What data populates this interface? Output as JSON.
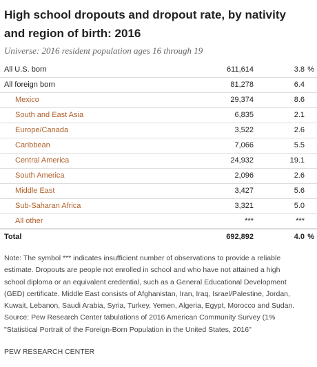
{
  "header": {
    "title": "High school dropouts and dropout rate, by nativity and region of birth: 2016",
    "subtitle": "Universe: 2016 resident population ages 16 through 19"
  },
  "table": {
    "rows": [
      {
        "label": "All U.S. born",
        "count": "611,614",
        "rate": "3.8",
        "unit": "%"
      },
      {
        "label": "All foreign born",
        "count": "81,278",
        "rate": "6.4"
      },
      {
        "label": "Mexico",
        "count": "29,374",
        "rate": "8.6",
        "sub": true
      },
      {
        "label": "South and East Asia",
        "count": "6,835",
        "rate": "2.1",
        "sub": true
      },
      {
        "label": "Europe/Canada",
        "count": "3,522",
        "rate": "2.6",
        "sub": true
      },
      {
        "label": "Caribbean",
        "count": "7,066",
        "rate": "5.5",
        "sub": true
      },
      {
        "label": "Central America",
        "count": "24,932",
        "rate": "19.1",
        "sub": true
      },
      {
        "label": "South America",
        "count": "2,096",
        "rate": "2.6",
        "sub": true
      },
      {
        "label": "Middle East",
        "count": "3,427",
        "rate": "5.6",
        "sub": true
      },
      {
        "label": "Sub-Saharan Africa",
        "count": "3,321",
        "rate": "5.0",
        "sub": true
      },
      {
        "label": "All other",
        "count": "***",
        "rate": "***",
        "sub": true
      },
      {
        "label": "Total",
        "count": "692,892",
        "rate": "4.0",
        "unit": "%",
        "total": true
      }
    ]
  },
  "notes": [
    "Note: The symbol *** indicates insufficient number of observations to provide a reliable",
    "estimate. Dropouts are people not enrolled in school and who have not attained a high",
    "school diploma or an equivalent credential, such as a General Educational Development",
    "(GED) certificate. Middle East consists of Afghanistan, Iran, Iraq, Israel/Palestine, Jordan,",
    "Kuwait, Lebanon, Saudi Arabia, Syria, Turkey, Yemen, Algeria, Egypt, Morocco and Sudan.",
    "Source: Pew Research Center tabulations of 2016 American Community Survey (1%",
    "\"Statistical Portrait of the Foreign-Born Population in the United States, 2016\""
  ],
  "footer": "PEW RESEARCH CENTER"
}
